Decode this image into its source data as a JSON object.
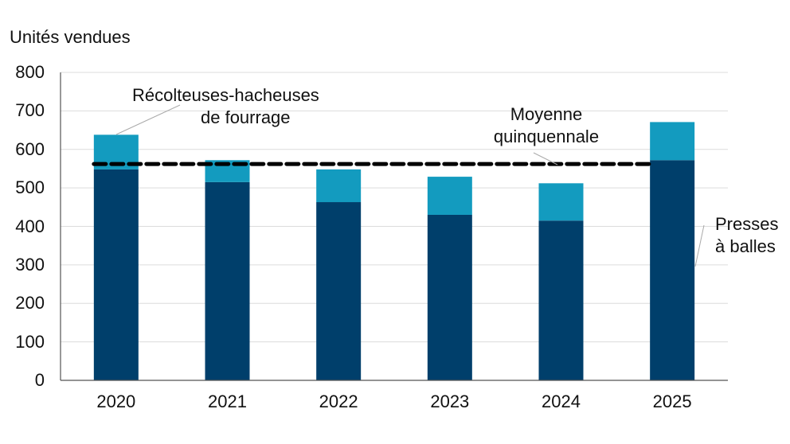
{
  "chart_data": {
    "type": "bar",
    "stacked": true,
    "title": "",
    "xlabel": "",
    "ylabel": "Unités vendues",
    "ylim": [
      0,
      800
    ],
    "yticks": [
      0,
      100,
      200,
      300,
      400,
      500,
      600,
      700,
      800
    ],
    "grid": true,
    "categories": [
      "2020",
      "2021",
      "2022",
      "2023",
      "2024",
      "2025"
    ],
    "series": [
      {
        "name": "Presses à balles",
        "color": "#003f6b",
        "values": [
          548,
          515,
          463,
          430,
          415,
          572
        ]
      },
      {
        "name": "Récolteuses-hacheuses de fourrage",
        "color": "#139bbf",
        "values": [
          90,
          57,
          85,
          99,
          97,
          99
        ]
      }
    ],
    "reference_line": {
      "name": "Moyenne quinquennale",
      "value": 562,
      "style": "dashed",
      "color": "#000000"
    },
    "annotations": [
      {
        "text": "Récolteuses-hacheuses de fourrage",
        "target": "2020 top segment"
      },
      {
        "text": "Moyenne quinquennale",
        "target": "average line"
      },
      {
        "text": "Presses à balles",
        "target": "2025 bottom segment"
      }
    ]
  },
  "labels": {
    "ylabel": "Unités vendues",
    "ann_forage_1": "Récolteuses-hacheuses",
    "ann_forage_2": "de fourrage",
    "ann_avg_1": "Moyenne",
    "ann_avg_2": "quinquennale",
    "ann_baler_1": "Presses",
    "ann_baler_2": "à balles"
  }
}
